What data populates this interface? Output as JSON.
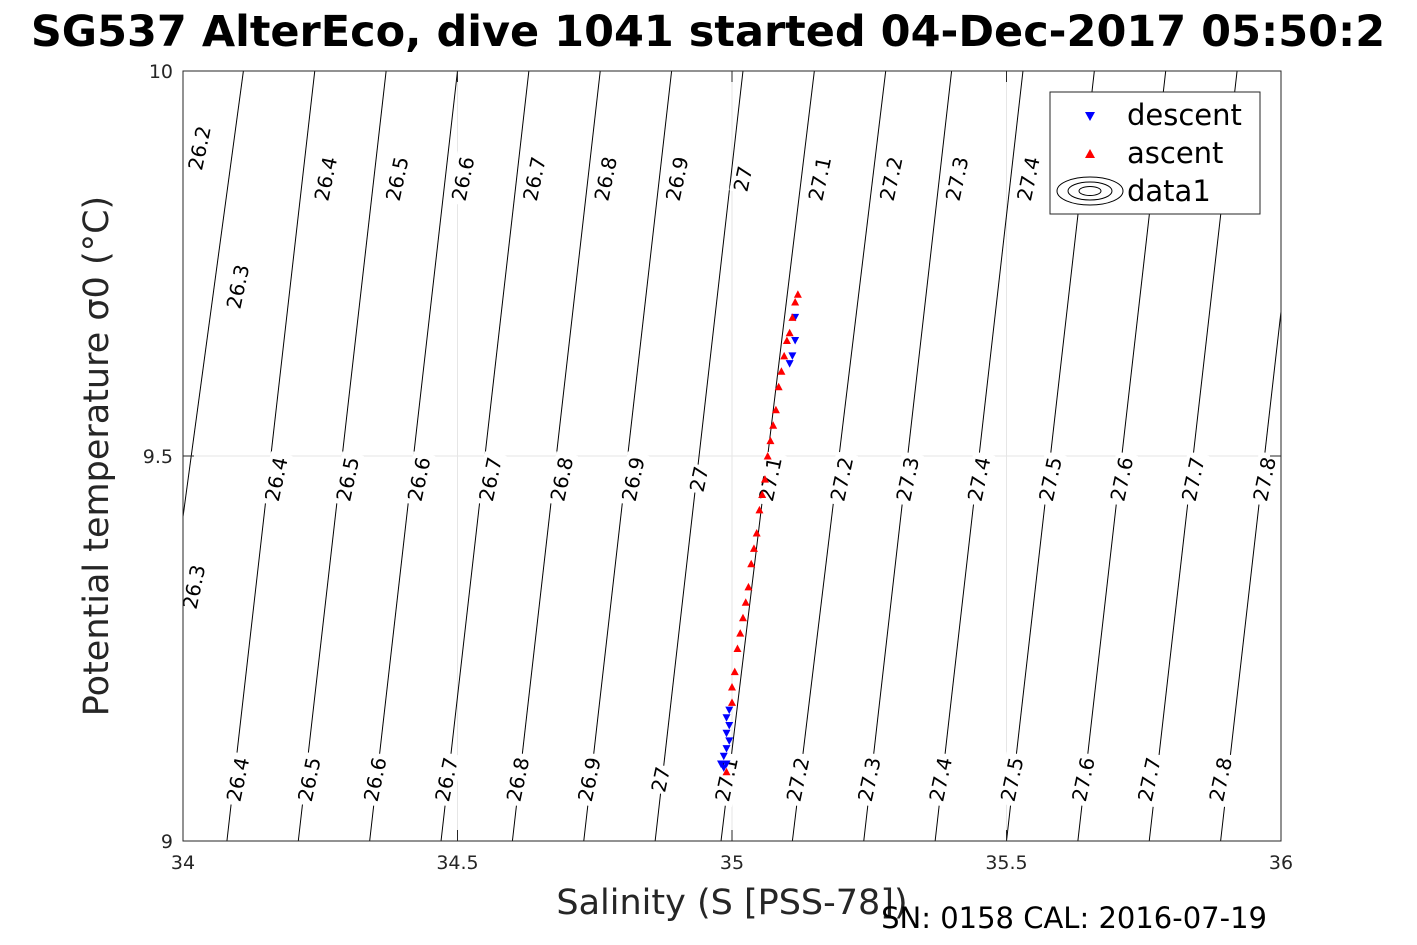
{
  "chart_data": {
    "type": "scatter",
    "title": "SG537 AlterEco, dive 1041 started 04-Dec-2017 05:50:2",
    "xlabel": "Salinity (S [PSS-78])",
    "ylabel": "Potential temperature σ0 (°C)",
    "xlim": [
      34,
      36
    ],
    "ylim": [
      9,
      10
    ],
    "xticks": [
      34,
      34.5,
      35,
      35.5,
      36
    ],
    "xtick_labels": [
      "34",
      "34.5",
      "35",
      "35.5",
      "36"
    ],
    "yticks": [
      9,
      9.5,
      10
    ],
    "ytick_labels": [
      "9",
      "9.5",
      "10"
    ],
    "grid": true,
    "legend_position": "top-right",
    "legend": [
      "descent",
      "ascent",
      "data1"
    ],
    "footer": "SN: 0158  CAL: 2016-07-19",
    "contours": {
      "levels": [
        26.2,
        26.3,
        26.4,
        26.5,
        26.6,
        26.7,
        26.8,
        26.9,
        27.0,
        27.1,
        27.2,
        27.3,
        27.4,
        27.5,
        27.6,
        27.7,
        27.8
      ],
      "salinity_at_T9": [
        33.79,
        33.92,
        34.08,
        34.21,
        34.34,
        34.47,
        34.6,
        34.73,
        34.86,
        34.98,
        35.11,
        35.24,
        35.37,
        35.5,
        35.63,
        35.76,
        35.89
      ],
      "salinity_at_T10": [
        33.98,
        34.11,
        34.24,
        34.37,
        34.5,
        34.63,
        34.76,
        34.89,
        35.02,
        35.15,
        35.28,
        35.4,
        35.53,
        35.66,
        35.79,
        35.92,
        36.05
      ],
      "labels": [
        {
          "text": "26.2",
          "s": 34.03,
          "t": 9.9
        },
        {
          "text": "26.3",
          "s": 34.1,
          "t": 9.72
        },
        {
          "text": "26.4",
          "s": 34.26,
          "t": 9.86
        },
        {
          "text": "26.5",
          "s": 34.39,
          "t": 9.86
        },
        {
          "text": "26.6",
          "s": 34.51,
          "t": 9.86
        },
        {
          "text": "26.7",
          "s": 34.64,
          "t": 9.86
        },
        {
          "text": "26.8",
          "s": 34.77,
          "t": 9.86
        },
        {
          "text": "26.9",
          "s": 34.9,
          "t": 9.86
        },
        {
          "text": "27",
          "s": 35.02,
          "t": 9.86
        },
        {
          "text": "27.1",
          "s": 35.16,
          "t": 9.86
        },
        {
          "text": "27.2",
          "s": 35.29,
          "t": 9.86
        },
        {
          "text": "27.3",
          "s": 35.41,
          "t": 9.86
        },
        {
          "text": "27.4",
          "s": 35.54,
          "t": 9.86
        },
        {
          "text": "26.3",
          "s": 34.02,
          "t": 9.33
        },
        {
          "text": "26.4",
          "s": 34.17,
          "t": 9.47
        },
        {
          "text": "26.5",
          "s": 34.3,
          "t": 9.47
        },
        {
          "text": "26.6",
          "s": 34.43,
          "t": 9.47
        },
        {
          "text": "26.7",
          "s": 34.56,
          "t": 9.47
        },
        {
          "text": "26.8",
          "s": 34.69,
          "t": 9.47
        },
        {
          "text": "26.9",
          "s": 34.82,
          "t": 9.47
        },
        {
          "text": "27",
          "s": 34.94,
          "t": 9.47
        },
        {
          "text": "27.1",
          "s": 35.07,
          "t": 9.47
        },
        {
          "text": "27.2",
          "s": 35.2,
          "t": 9.47
        },
        {
          "text": "27.3",
          "s": 35.32,
          "t": 9.47
        },
        {
          "text": "27.4",
          "s": 35.45,
          "t": 9.47
        },
        {
          "text": "27.5",
          "s": 35.58,
          "t": 9.47
        },
        {
          "text": "27.6",
          "s": 35.71,
          "t": 9.47
        },
        {
          "text": "27.7",
          "s": 35.84,
          "t": 9.47
        },
        {
          "text": "27.8",
          "s": 35.97,
          "t": 9.47
        },
        {
          "text": "26.4",
          "s": 34.1,
          "t": 9.08
        },
        {
          "text": "26.5",
          "s": 34.23,
          "t": 9.08
        },
        {
          "text": "26.6",
          "s": 34.35,
          "t": 9.08
        },
        {
          "text": "26.7",
          "s": 34.48,
          "t": 9.08
        },
        {
          "text": "26.8",
          "s": 34.61,
          "t": 9.08
        },
        {
          "text": "26.9",
          "s": 34.74,
          "t": 9.08
        },
        {
          "text": "27",
          "s": 34.87,
          "t": 9.08
        },
        {
          "text": "27.1",
          "s": 34.99,
          "t": 9.08
        },
        {
          "text": "27.2",
          "s": 35.12,
          "t": 9.08
        },
        {
          "text": "27.3",
          "s": 35.25,
          "t": 9.08
        },
        {
          "text": "27.4",
          "s": 35.38,
          "t": 9.08
        },
        {
          "text": "27.5",
          "s": 35.51,
          "t": 9.08
        },
        {
          "text": "27.6",
          "s": 35.64,
          "t": 9.08
        },
        {
          "text": "27.7",
          "s": 35.76,
          "t": 9.08
        },
        {
          "text": "27.8",
          "s": 35.89,
          "t": 9.08
        }
      ]
    },
    "series": [
      {
        "name": "descent",
        "marker": "triangle-down",
        "color": "#0000ff",
        "x": [
          34.98,
          34.985,
          34.99,
          34.985,
          34.99,
          34.995,
          34.99,
          34.995,
          34.99,
          34.995,
          35.105,
          35.11,
          35.115,
          35.115
        ],
        "y": [
          9.1,
          9.095,
          9.1,
          9.11,
          9.12,
          9.13,
          9.14,
          9.15,
          9.16,
          9.17,
          9.62,
          9.63,
          9.65,
          9.68
        ]
      },
      {
        "name": "ascent",
        "marker": "triangle-up",
        "color": "#ff0000",
        "x": [
          34.99,
          35.0,
          35.0,
          35.005,
          35.01,
          35.015,
          35.02,
          35.025,
          35.03,
          35.035,
          35.04,
          35.045,
          35.05,
          35.055,
          35.06,
          35.065,
          35.07,
          35.075,
          35.08,
          35.085,
          35.09,
          35.095,
          35.1,
          35.105,
          35.11,
          35.115,
          35.12
        ],
        "y": [
          9.09,
          9.18,
          9.2,
          9.22,
          9.25,
          9.27,
          9.29,
          9.31,
          9.33,
          9.36,
          9.38,
          9.4,
          9.43,
          9.45,
          9.47,
          9.5,
          9.52,
          9.54,
          9.56,
          9.59,
          9.61,
          9.63,
          9.65,
          9.66,
          9.68,
          9.7,
          9.71
        ]
      }
    ]
  }
}
